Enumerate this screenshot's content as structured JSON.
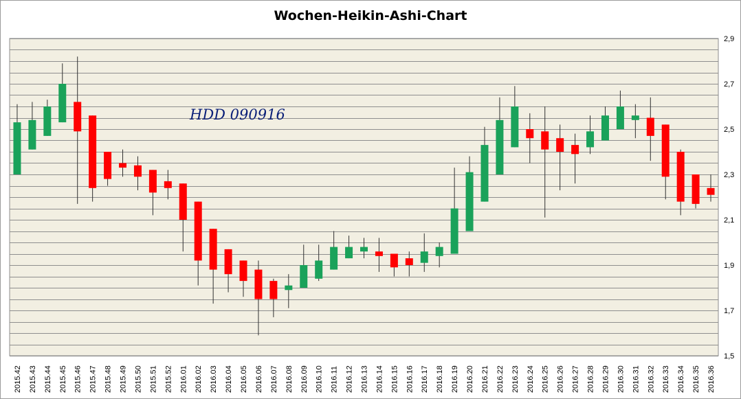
{
  "chart_data": {
    "type": "candlestick",
    "title": "Wochen-Heikin-Ashi-Chart",
    "annotation": "HDD 090916",
    "xlabel": "",
    "ylabel": "",
    "ylim": [
      1.5,
      2.9
    ],
    "y_ticks": [
      "1,5",
      "1,7",
      "1,9",
      "2,1",
      "2,3",
      "2,5",
      "2,7",
      "2,9"
    ],
    "grid": true,
    "legend": "none",
    "colors": {
      "up": "#1aa25a",
      "down": "#ff0000",
      "background": "#f2efe2",
      "grid": "#8e8e8e",
      "wick": "#303030"
    },
    "categories": [
      "2015.42",
      "2015.43",
      "2015.44",
      "2015.45",
      "2015.46",
      "2015.47",
      "2015.48",
      "2015.49",
      "2015.50",
      "2015.51",
      "2015.52",
      "2016.01",
      "2016.02",
      "2016.03",
      "2016.04",
      "2016.05",
      "2016.06",
      "2016.07",
      "2016.08",
      "2016.09",
      "2016.10",
      "2016.11",
      "2016.12",
      "2016.13",
      "2016.14",
      "2016.15",
      "2016.16",
      "2016.17",
      "2016.18",
      "2016.19",
      "2016.20",
      "2016.21",
      "2016.22",
      "2016.23",
      "2016.24",
      "2016.25",
      "2016.26",
      "2016.27",
      "2016.28",
      "2016.29",
      "2016.30",
      "2016.31",
      "2016.32",
      "2016.33",
      "2016.34",
      "2016.35",
      "2016.36"
    ],
    "open": [
      2.3,
      2.41,
      2.47,
      2.53,
      2.62,
      2.56,
      2.4,
      2.35,
      2.34,
      2.32,
      2.27,
      2.26,
      2.18,
      2.06,
      1.97,
      1.92,
      1.88,
      1.83,
      1.79,
      1.8,
      1.84,
      1.88,
      1.93,
      1.96,
      1.96,
      1.95,
      1.93,
      1.91,
      1.94,
      1.95,
      2.05,
      2.18,
      2.3,
      2.42,
      2.5,
      2.49,
      2.46,
      2.43,
      2.42,
      2.45,
      2.5,
      2.54,
      2.55,
      2.52,
      2.4,
      2.3,
      2.24
    ],
    "close": [
      2.53,
      2.54,
      2.6,
      2.7,
      2.49,
      2.24,
      2.28,
      2.33,
      2.29,
      2.22,
      2.24,
      2.1,
      1.92,
      1.88,
      1.86,
      1.83,
      1.75,
      1.75,
      1.81,
      1.9,
      1.92,
      1.98,
      1.98,
      1.98,
      1.94,
      1.89,
      1.9,
      1.96,
      1.98,
      2.15,
      2.31,
      2.43,
      2.54,
      2.6,
      2.46,
      2.41,
      2.4,
      2.39,
      2.49,
      2.56,
      2.6,
      2.56,
      2.47,
      2.29,
      2.18,
      2.17,
      2.21
    ],
    "high": [
      2.61,
      2.62,
      2.63,
      2.79,
      2.82,
      2.56,
      2.4,
      2.41,
      2.38,
      2.32,
      2.32,
      2.26,
      2.18,
      2.06,
      1.97,
      1.92,
      1.92,
      1.84,
      1.86,
      1.99,
      1.99,
      2.05,
      2.03,
      2.02,
      2.02,
      1.95,
      1.96,
      2.04,
      2.0,
      2.33,
      2.38,
      2.51,
      2.64,
      2.69,
      2.57,
      2.6,
      2.52,
      2.48,
      2.56,
      2.6,
      2.67,
      2.61,
      2.64,
      2.52,
      2.41,
      2.3,
      2.3
    ],
    "low": [
      2.3,
      2.41,
      2.47,
      2.53,
      2.17,
      2.18,
      2.25,
      2.29,
      2.23,
      2.12,
      2.19,
      1.96,
      1.81,
      1.73,
      1.78,
      1.76,
      1.59,
      1.67,
      1.71,
      1.8,
      1.83,
      1.88,
      1.93,
      1.93,
      1.87,
      1.85,
      1.85,
      1.87,
      1.89,
      1.95,
      2.05,
      2.18,
      2.3,
      2.42,
      2.35,
      2.11,
      2.23,
      2.26,
      2.39,
      2.45,
      2.5,
      2.46,
      2.36,
      2.19,
      2.12,
      2.15,
      2.18
    ]
  }
}
